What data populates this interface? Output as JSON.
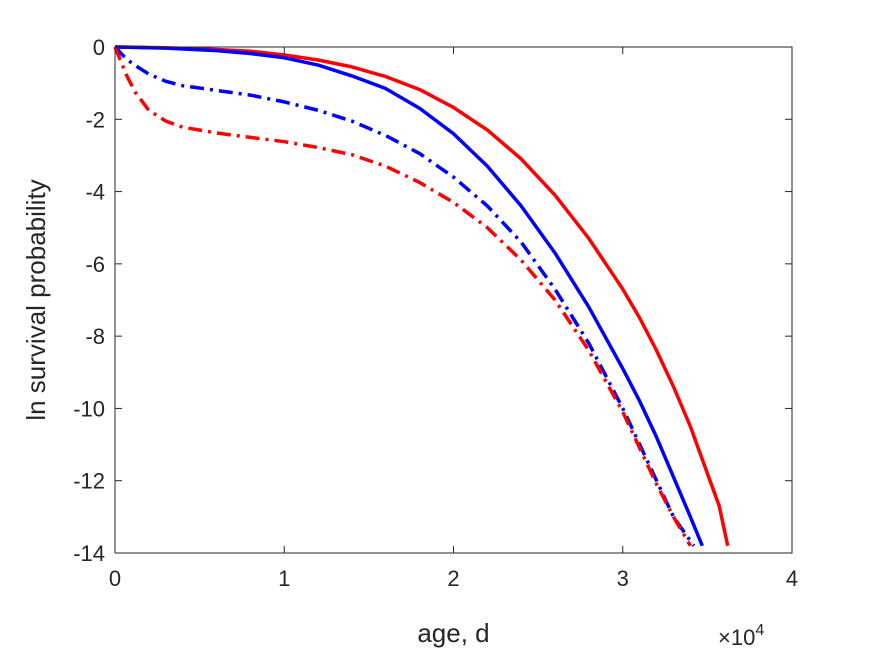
{
  "chart_data": {
    "type": "line",
    "xlabel": "age, d",
    "ylabel": "ln survival probability",
    "x_exponent_label": "×10",
    "x_exponent_power": "4",
    "xlim": [
      0,
      40000
    ],
    "ylim": [
      -14,
      0
    ],
    "x_ticks": [
      0,
      10000,
      20000,
      30000,
      40000
    ],
    "x_tick_labels": [
      "0",
      "1",
      "2",
      "3",
      "4"
    ],
    "y_ticks": [
      0,
      -2,
      -4,
      -6,
      -8,
      -10,
      -12,
      -14
    ],
    "y_tick_labels": [
      "0",
      "-2",
      "-4",
      "-6",
      "-8",
      "-10",
      "-12",
      "-14"
    ],
    "grid": false,
    "series": [
      {
        "color": "#ff0000",
        "style": "solid",
        "points": [
          [
            0,
            0
          ],
          [
            3000,
            -0.02
          ],
          [
            6000,
            -0.07
          ],
          [
            8000,
            -0.12
          ],
          [
            10000,
            -0.22
          ],
          [
            12000,
            -0.36
          ],
          [
            14000,
            -0.55
          ],
          [
            16000,
            -0.82
          ],
          [
            18000,
            -1.18
          ],
          [
            20000,
            -1.67
          ],
          [
            22000,
            -2.3
          ],
          [
            24000,
            -3.1
          ],
          [
            26000,
            -4.1
          ],
          [
            28000,
            -5.3
          ],
          [
            30000,
            -6.7
          ],
          [
            31000,
            -7.5
          ],
          [
            32000,
            -8.4
          ],
          [
            33000,
            -9.4
          ],
          [
            34000,
            -10.5
          ],
          [
            35000,
            -11.8
          ],
          [
            35700,
            -12.7
          ],
          [
            36200,
            -13.8
          ]
        ]
      },
      {
        "color": "#0000ff",
        "style": "solid",
        "points": [
          [
            0,
            0
          ],
          [
            3000,
            -0.03
          ],
          [
            6000,
            -0.1
          ],
          [
            8000,
            -0.18
          ],
          [
            10000,
            -0.3
          ],
          [
            12000,
            -0.5
          ],
          [
            14000,
            -0.8
          ],
          [
            16000,
            -1.15
          ],
          [
            18000,
            -1.7
          ],
          [
            20000,
            -2.4
          ],
          [
            22000,
            -3.3
          ],
          [
            24000,
            -4.4
          ],
          [
            26000,
            -5.7
          ],
          [
            28000,
            -7.2
          ],
          [
            30000,
            -8.9
          ],
          [
            31000,
            -9.8
          ],
          [
            32000,
            -10.8
          ],
          [
            33000,
            -11.9
          ],
          [
            34000,
            -13.0
          ],
          [
            34700,
            -13.8
          ]
        ]
      },
      {
        "color": "#0000ff",
        "style": "dashdot",
        "points": [
          [
            0,
            0
          ],
          [
            500,
            -0.25
          ],
          [
            1000,
            -0.45
          ],
          [
            2000,
            -0.75
          ],
          [
            3000,
            -0.95
          ],
          [
            4000,
            -1.07
          ],
          [
            6000,
            -1.2
          ],
          [
            8000,
            -1.33
          ],
          [
            10000,
            -1.52
          ],
          [
            12000,
            -1.75
          ],
          [
            14000,
            -2.05
          ],
          [
            16000,
            -2.45
          ],
          [
            18000,
            -2.95
          ],
          [
            20000,
            -3.6
          ],
          [
            22000,
            -4.4
          ],
          [
            24000,
            -5.4
          ],
          [
            26000,
            -6.7
          ],
          [
            28000,
            -8.2
          ],
          [
            30000,
            -10.0
          ],
          [
            32000,
            -12.0
          ],
          [
            33000,
            -13.0
          ],
          [
            34200,
            -13.8
          ]
        ]
      },
      {
        "color": "#ff0000",
        "style": "dashdot",
        "points": [
          [
            0,
            0
          ],
          [
            300,
            -0.35
          ],
          [
            700,
            -0.8
          ],
          [
            1200,
            -1.25
          ],
          [
            2000,
            -1.75
          ],
          [
            3000,
            -2.05
          ],
          [
            4000,
            -2.22
          ],
          [
            6000,
            -2.38
          ],
          [
            8000,
            -2.5
          ],
          [
            10000,
            -2.62
          ],
          [
            12000,
            -2.78
          ],
          [
            14000,
            -2.98
          ],
          [
            16000,
            -3.3
          ],
          [
            18000,
            -3.75
          ],
          [
            20000,
            -4.3
          ],
          [
            22000,
            -5.0
          ],
          [
            24000,
            -5.9
          ],
          [
            26000,
            -7.0
          ],
          [
            28000,
            -8.4
          ],
          [
            30000,
            -10.1
          ],
          [
            32000,
            -12.1
          ],
          [
            33000,
            -13.0
          ],
          [
            34000,
            -13.8
          ]
        ]
      }
    ]
  }
}
